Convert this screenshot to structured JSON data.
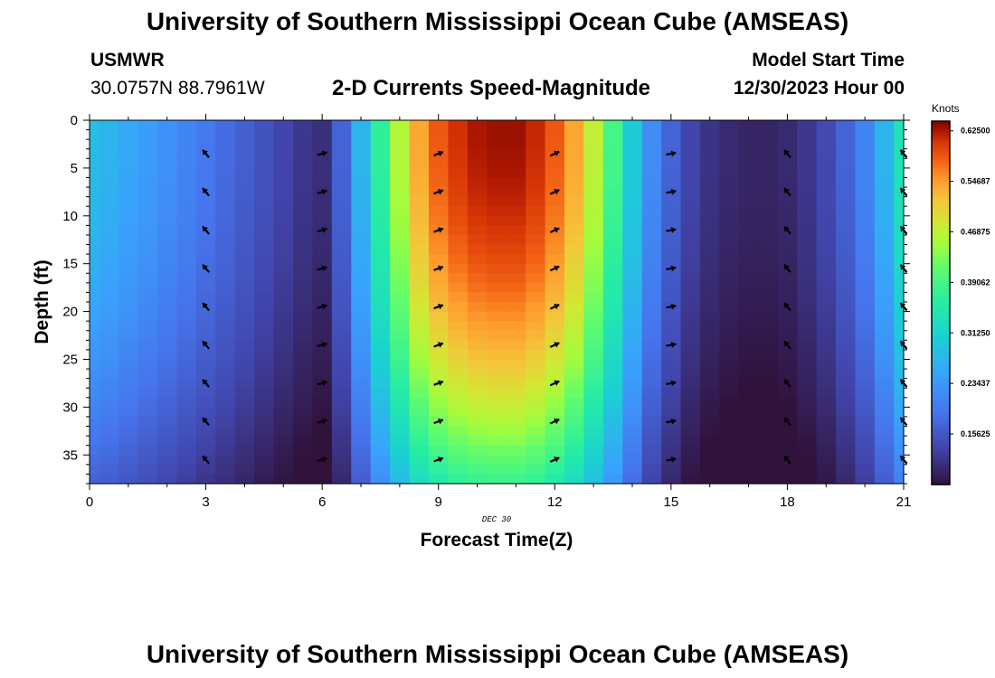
{
  "header": {
    "title": "University of Southern Mississippi Ocean Cube (AMSEAS)",
    "station_code": "USMWR",
    "station_coords": "30.0757N  88.7961W",
    "chart_title": "2-D Currents Speed-Magnitude",
    "model_start_label": "Model Start Time",
    "model_start_value": "12/30/2023 Hour 00"
  },
  "footer": {
    "title": "University of Southern Mississippi Ocean Cube (AMSEAS)"
  },
  "chart_data": {
    "type": "heatmap",
    "title": "2-D Currents Speed-Magnitude",
    "xlabel": "Forecast Time(Z)",
    "ylabel": "Depth (ft)",
    "x_date_label": "DEC 30",
    "xlim": [
      0,
      21
    ],
    "ylim": [
      0,
      38
    ],
    "y_inverted": true,
    "x_ticks": [
      0,
      3,
      6,
      9,
      12,
      15,
      18,
      21
    ],
    "y_ticks": [
      0,
      5,
      10,
      15,
      20,
      25,
      30,
      35
    ],
    "colorbar": {
      "unit": "Knots",
      "min": 0.078,
      "max": 0.64,
      "ticks": [
        "0.15625",
        "0.23437",
        "0.31250",
        "0.39062",
        "0.46875",
        "0.54687",
        "0.62500"
      ],
      "tick_values": [
        0.15625,
        0.234375,
        0.3125,
        0.390625,
        0.46875,
        0.546875,
        0.625
      ]
    },
    "time_hours": [
      0,
      0.5,
      1,
      1.5,
      2,
      2.5,
      3,
      3.5,
      4,
      4.5,
      5,
      5.5,
      6,
      6.5,
      7,
      7.5,
      8,
      8.5,
      9,
      9.5,
      10,
      10.5,
      11,
      11.5,
      12,
      12.5,
      13,
      13.5,
      14,
      14.5,
      15,
      15.5,
      16,
      16.5,
      17,
      17.5,
      18,
      18.5,
      19,
      19.5,
      20,
      20.5,
      21
    ],
    "surface_speed_knots": [
      0.28,
      0.27,
      0.255,
      0.24,
      0.225,
      0.21,
      0.195,
      0.18,
      0.165,
      0.15,
      0.135,
      0.12,
      0.11,
      0.17,
      0.27,
      0.37,
      0.46,
      0.54,
      0.585,
      0.61,
      0.625,
      0.63,
      0.63,
      0.615,
      0.585,
      0.54,
      0.47,
      0.39,
      0.3,
      0.22,
      0.17,
      0.135,
      0.115,
      0.105,
      0.1,
      0.1,
      0.105,
      0.12,
      0.14,
      0.17,
      0.21,
      0.27,
      0.34
    ],
    "depth_attenuation": "speed decreases toward the bottom (approx. 60% of surface value at 38 ft)",
    "vectors": {
      "times": [
        3,
        6,
        9,
        12,
        15,
        18,
        21
      ],
      "depths": [
        3.5,
        7.5,
        11.5,
        15.5,
        19.5,
        23.5,
        27.5,
        31.5,
        35.5
      ],
      "direction_deg": [
        -40,
        75,
        70,
        65,
        80,
        -40,
        -40
      ]
    }
  }
}
